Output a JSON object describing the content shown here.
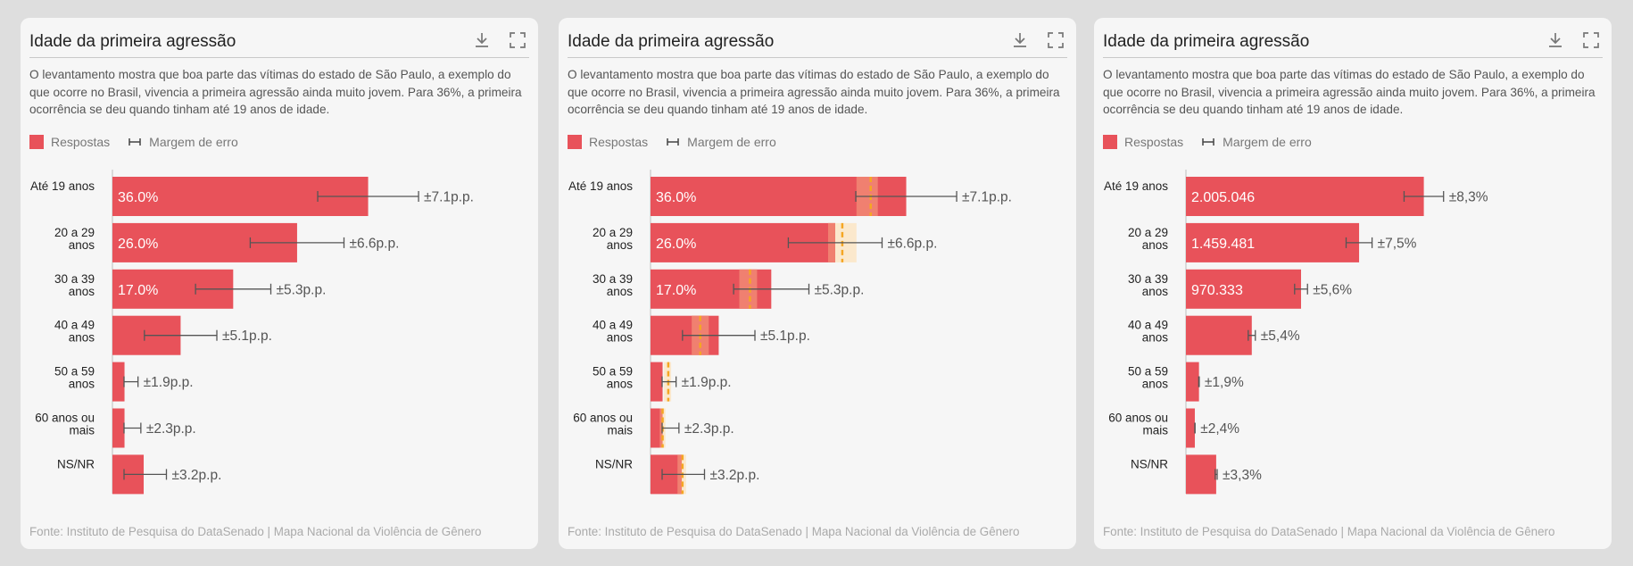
{
  "colors": {
    "bar": "#e8525a",
    "bar_highlight": "#f08070",
    "band": "#fbe8cc",
    "marker": "#f5a623",
    "errorbar": "#555555"
  },
  "cards": [
    {
      "title": "Idade da primeira agressão",
      "description": "O levantamento mostra que boa parte das vítimas do estado de São Paulo, a exemplo do que ocorre no Brasil, vivencia a primeira agressão ainda muito jovem. Para 36%, a primeira ocorrência se deu quando tinham até 19 anos de idade.",
      "legend": {
        "bars": "Respostas",
        "error": "Margem de erro"
      },
      "source": "Fonte: Instituto de Pesquisa do DataSenado | Mapa Nacional da Violência de Gênero",
      "icons": [
        "download-icon",
        "fullscreen-icon"
      ]
    },
    {
      "title": "Idade da primeira agressão",
      "description": "O levantamento mostra que boa parte das vítimas do estado de São Paulo, a exemplo do que ocorre no Brasil, vivencia a primeira agressão ainda muito jovem. Para 36%, a primeira ocorrência se deu quando tinham até 19 anos de idade.",
      "legend": {
        "bars": "Respostas",
        "error": "Margem de erro"
      },
      "source": "Fonte: Instituto de Pesquisa do DataSenado | Mapa Nacional da Violência de Gênero",
      "icons": [
        "download-icon",
        "fullscreen-icon"
      ]
    },
    {
      "title": "Idade da primeira agressão",
      "description": "O levantamento mostra que boa parte das vítimas do estado de São Paulo, a exemplo do que ocorre no Brasil, vivencia a primeira agressão ainda muito jovem. Para 36%, a primeira ocorrência se deu quando tinham até 19 anos de idade.",
      "legend": {
        "bars": "Respostas",
        "error": "Margem de erro"
      },
      "source": "Fonte: Instituto de Pesquisa do DataSenado | Mapa Nacional da Violência de Gênero",
      "icons": [
        "download-icon",
        "fullscreen-icon"
      ]
    }
  ],
  "chart_data": [
    {
      "type": "bar",
      "orientation": "horizontal",
      "title": "Idade da primeira agressão",
      "categories": [
        [
          "Até 19 anos"
        ],
        [
          "20 a 29",
          "anos"
        ],
        [
          "30 a 39",
          "anos"
        ],
        [
          "40 a 49",
          "anos"
        ],
        [
          "50 a 59",
          "anos"
        ],
        [
          "60 anos ou",
          "mais"
        ],
        [
          "NS/NR"
        ]
      ],
      "values": [
        36.0,
        26.0,
        17.0,
        9.6,
        1.7,
        1.7,
        4.4
      ],
      "value_labels": [
        "36.0%",
        "26.0%",
        "17.0%",
        "",
        "",
        "",
        ""
      ],
      "error_margins": [
        7.1,
        6.6,
        5.3,
        5.1,
        1.9,
        2.3,
        3.2
      ],
      "error_labels": [
        "±7.1p.p.",
        "±6.6p.p.",
        "±5.3p.p.",
        "±5.1p.p.",
        "±1.9p.p.",
        "±2.3p.p.",
        "±3.2p.p."
      ],
      "xlim": [
        0,
        44.6
      ],
      "legend": [
        "Respostas",
        "Margem de erro"
      ]
    },
    {
      "type": "bar",
      "orientation": "horizontal",
      "title": "Idade da primeira agressão",
      "categories": [
        [
          "Até 19 anos"
        ],
        [
          "20 a 29",
          "anos"
        ],
        [
          "30 a 39",
          "anos"
        ],
        [
          "40 a 49",
          "anos"
        ],
        [
          "50 a 59",
          "anos"
        ],
        [
          "60 anos ou",
          "mais"
        ],
        [
          "NS/NR"
        ]
      ],
      "values": [
        36.0,
        26.0,
        17.0,
        9.6,
        1.7,
        1.7,
        4.4
      ],
      "value_labels": [
        "36.0%",
        "26.0%",
        "17.0%",
        "",
        "",
        "",
        ""
      ],
      "error_margins": [
        7.1,
        6.6,
        5.3,
        5.1,
        1.9,
        2.3,
        3.2
      ],
      "error_labels": [
        "±7.1p.p.",
        "±6.6p.p.",
        "±5.3p.p.",
        "±5.1p.p.",
        "±1.9p.p.",
        "±2.3p.p.",
        "±3.2p.p."
      ],
      "reference_values": [
        31.0,
        27.0,
        14.0,
        7.0,
        2.5,
        1.7,
        4.5
      ],
      "reference_ranges": [
        [
          29.0,
          32.0
        ],
        [
          25.0,
          29.0
        ],
        [
          12.5,
          15.0
        ],
        [
          5.8,
          8.2
        ],
        [
          1.9,
          2.9
        ],
        [
          1.3,
          2.1
        ],
        [
          3.8,
          5.0
        ]
      ],
      "xlim": [
        0,
        44.6
      ],
      "legend": [
        "Respostas",
        "Margem de erro"
      ]
    },
    {
      "type": "bar",
      "orientation": "horizontal",
      "title": "Idade da primeira agressão",
      "categories": [
        [
          "Até 19 anos"
        ],
        [
          "20 a 29",
          "anos"
        ],
        [
          "30 a 39",
          "anos"
        ],
        [
          "40 a 49",
          "anos"
        ],
        [
          "50 a 59",
          "anos"
        ],
        [
          "60 anos ou",
          "mais"
        ],
        [
          "NS/NR"
        ]
      ],
      "values": [
        2005046,
        1459481,
        970333,
        555000,
        110000,
        75000,
        255000
      ],
      "value_labels": [
        "2.005.046",
        "1.459.481",
        "970.333",
        "",
        "",
        "",
        ""
      ],
      "error_margins_pct": [
        8.3,
        7.5,
        5.6,
        5.4,
        1.9,
        2.4,
        3.3
      ],
      "error_labels": [
        "±8,3%",
        "±7,5%",
        "±5,6%",
        "±5,4%",
        "±1,9%",
        "±2,4%",
        "±3,3%"
      ],
      "xlim": [
        0,
        2670000
      ],
      "legend": [
        "Respostas",
        "Margem de erro"
      ]
    }
  ]
}
